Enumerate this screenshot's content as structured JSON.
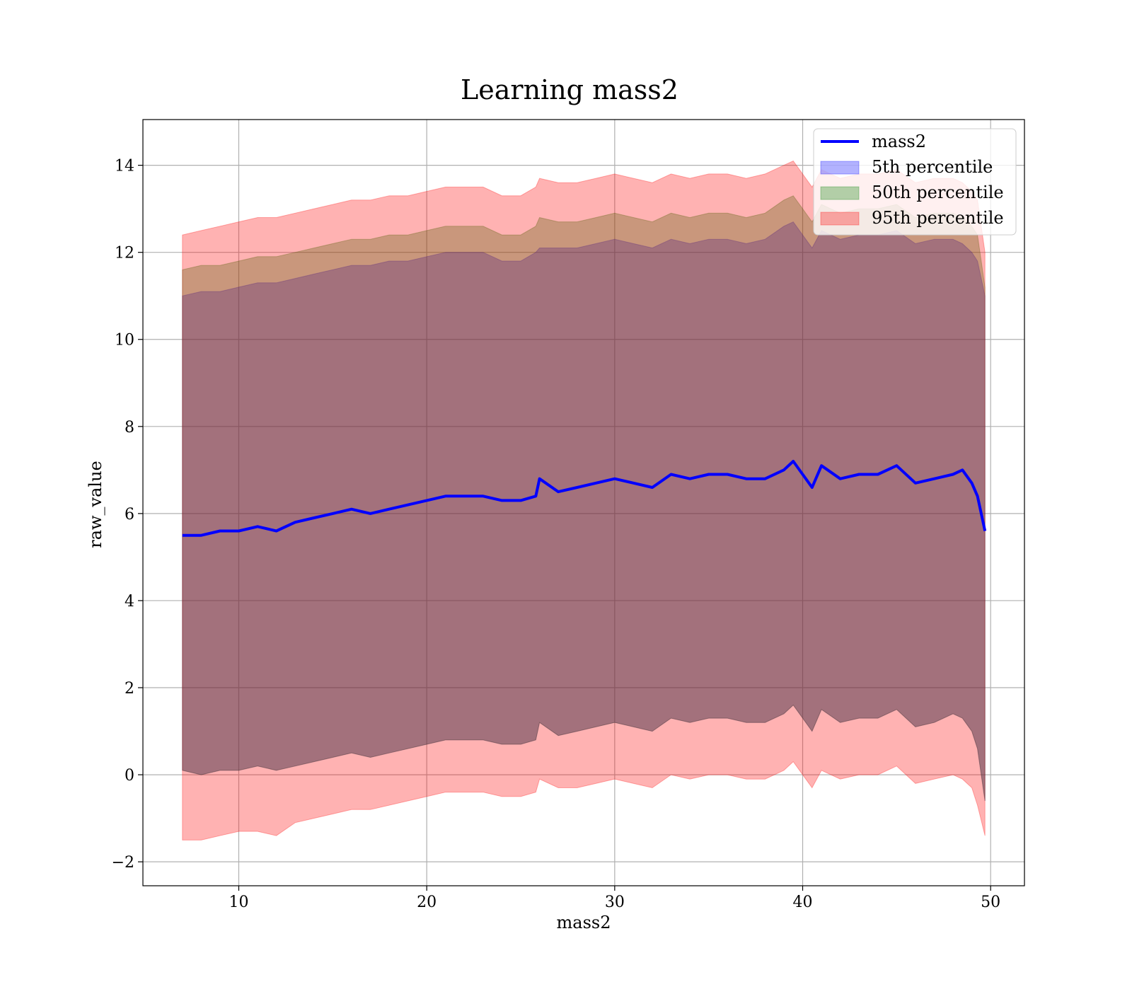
{
  "chart_data": {
    "type": "area",
    "title": "Learning mass2",
    "xlabel": "mass2",
    "ylabel": "raw_value",
    "xlim": [
      4.9,
      51.8
    ],
    "ylim": [
      -2.55,
      15.05
    ],
    "xticks": [
      10,
      20,
      30,
      40,
      50
    ],
    "yticks": [
      -2,
      0,
      2,
      4,
      6,
      8,
      10,
      12,
      14
    ],
    "xtick_labels": [
      "10",
      "20",
      "30",
      "40",
      "50"
    ],
    "ytick_labels": [
      "−2",
      "0",
      "2",
      "4",
      "6",
      "8",
      "10",
      "12",
      "14"
    ],
    "grid": true,
    "legend_position": "top-right",
    "x": [
      7.0,
      8.0,
      9.0,
      10.0,
      11.0,
      12.0,
      13.0,
      14.0,
      15.0,
      16.0,
      17.0,
      18.0,
      19.0,
      20.0,
      21.0,
      22.0,
      23.0,
      24.0,
      25.0,
      25.8,
      26.0,
      27.0,
      28.0,
      29.0,
      30.0,
      31.0,
      32.0,
      33.0,
      34.0,
      35.0,
      36.0,
      37.0,
      38.0,
      39.0,
      39.5,
      40.0,
      40.5,
      41.0,
      42.0,
      43.0,
      44.0,
      45.0,
      46.0,
      47.0,
      48.0,
      48.5,
      49.0,
      49.3,
      49.7
    ],
    "series": [
      {
        "name": "mass2",
        "kind": "line",
        "color": "#0000ff",
        "values": [
          5.5,
          5.5,
          5.6,
          5.6,
          5.7,
          5.6,
          5.8,
          5.9,
          6.0,
          6.1,
          6.0,
          6.1,
          6.2,
          6.3,
          6.4,
          6.4,
          6.4,
          6.3,
          6.3,
          6.4,
          6.8,
          6.5,
          6.6,
          6.7,
          6.8,
          6.7,
          6.6,
          6.9,
          6.8,
          6.9,
          6.9,
          6.8,
          6.8,
          7.0,
          7.2,
          6.9,
          6.6,
          7.1,
          6.8,
          6.9,
          6.9,
          7.1,
          6.7,
          6.8,
          6.9,
          7.0,
          6.7,
          6.4,
          5.6
        ]
      },
      {
        "name": "5th percentile",
        "kind": "band",
        "color": "#0000ff",
        "upper": [
          11.0,
          11.1,
          11.1,
          11.2,
          11.3,
          11.3,
          11.4,
          11.5,
          11.6,
          11.7,
          11.7,
          11.8,
          11.8,
          11.9,
          12.0,
          12.0,
          12.0,
          11.8,
          11.8,
          12.0,
          12.1,
          12.1,
          12.1,
          12.2,
          12.3,
          12.2,
          12.1,
          12.3,
          12.2,
          12.3,
          12.3,
          12.2,
          12.3,
          12.6,
          12.7,
          12.4,
          12.1,
          12.5,
          12.3,
          12.4,
          12.4,
          12.5,
          12.2,
          12.3,
          12.3,
          12.2,
          12.0,
          11.8,
          11.0
        ],
        "lower": [
          0.1,
          0.0,
          0.1,
          0.1,
          0.2,
          0.1,
          0.2,
          0.3,
          0.4,
          0.5,
          0.4,
          0.5,
          0.6,
          0.7,
          0.8,
          0.8,
          0.8,
          0.7,
          0.7,
          0.8,
          1.2,
          0.9,
          1.0,
          1.1,
          1.2,
          1.1,
          1.0,
          1.3,
          1.2,
          1.3,
          1.3,
          1.2,
          1.2,
          1.4,
          1.6,
          1.3,
          1.0,
          1.5,
          1.2,
          1.3,
          1.3,
          1.5,
          1.1,
          1.2,
          1.4,
          1.3,
          1.0,
          0.6,
          -0.6
        ]
      },
      {
        "name": "50th percentile",
        "kind": "band",
        "color": "#008000",
        "upper": [
          11.6,
          11.7,
          11.7,
          11.8,
          11.9,
          11.9,
          12.0,
          12.1,
          12.2,
          12.3,
          12.3,
          12.4,
          12.4,
          12.5,
          12.6,
          12.6,
          12.6,
          12.4,
          12.4,
          12.6,
          12.8,
          12.7,
          12.7,
          12.8,
          12.9,
          12.8,
          12.7,
          12.9,
          12.8,
          12.9,
          12.9,
          12.8,
          12.9,
          13.2,
          13.3,
          13.0,
          12.7,
          13.1,
          12.9,
          13.0,
          13.0,
          13.1,
          12.8,
          12.9,
          12.9,
          12.8,
          12.6,
          12.4,
          11.2
        ]
      },
      {
        "name": "95th percentile",
        "kind": "band",
        "color": "#ff0000",
        "upper": [
          12.4,
          12.5,
          12.6,
          12.7,
          12.8,
          12.8,
          12.9,
          13.0,
          13.1,
          13.2,
          13.2,
          13.3,
          13.3,
          13.4,
          13.5,
          13.5,
          13.5,
          13.3,
          13.3,
          13.5,
          13.7,
          13.6,
          13.6,
          13.7,
          13.8,
          13.7,
          13.6,
          13.8,
          13.7,
          13.8,
          13.8,
          13.7,
          13.8,
          14.0,
          14.1,
          13.8,
          13.5,
          13.9,
          13.7,
          13.8,
          13.8,
          13.9,
          13.6,
          13.7,
          13.7,
          13.6,
          13.4,
          13.2,
          12.0
        ],
        "lower": [
          -1.5,
          -1.5,
          -1.4,
          -1.3,
          -1.3,
          -1.4,
          -1.1,
          -1.0,
          -0.9,
          -0.8,
          -0.8,
          -0.7,
          -0.6,
          -0.5,
          -0.4,
          -0.4,
          -0.4,
          -0.5,
          -0.5,
          -0.4,
          -0.1,
          -0.3,
          -0.3,
          -0.2,
          -0.1,
          -0.2,
          -0.3,
          0.0,
          -0.1,
          0.0,
          0.0,
          -0.1,
          -0.1,
          0.1,
          0.3,
          0.0,
          -0.3,
          0.1,
          -0.1,
          0.0,
          0.0,
          0.2,
          -0.2,
          -0.1,
          0.0,
          -0.1,
          -0.3,
          -0.7,
          -1.4
        ]
      }
    ]
  }
}
